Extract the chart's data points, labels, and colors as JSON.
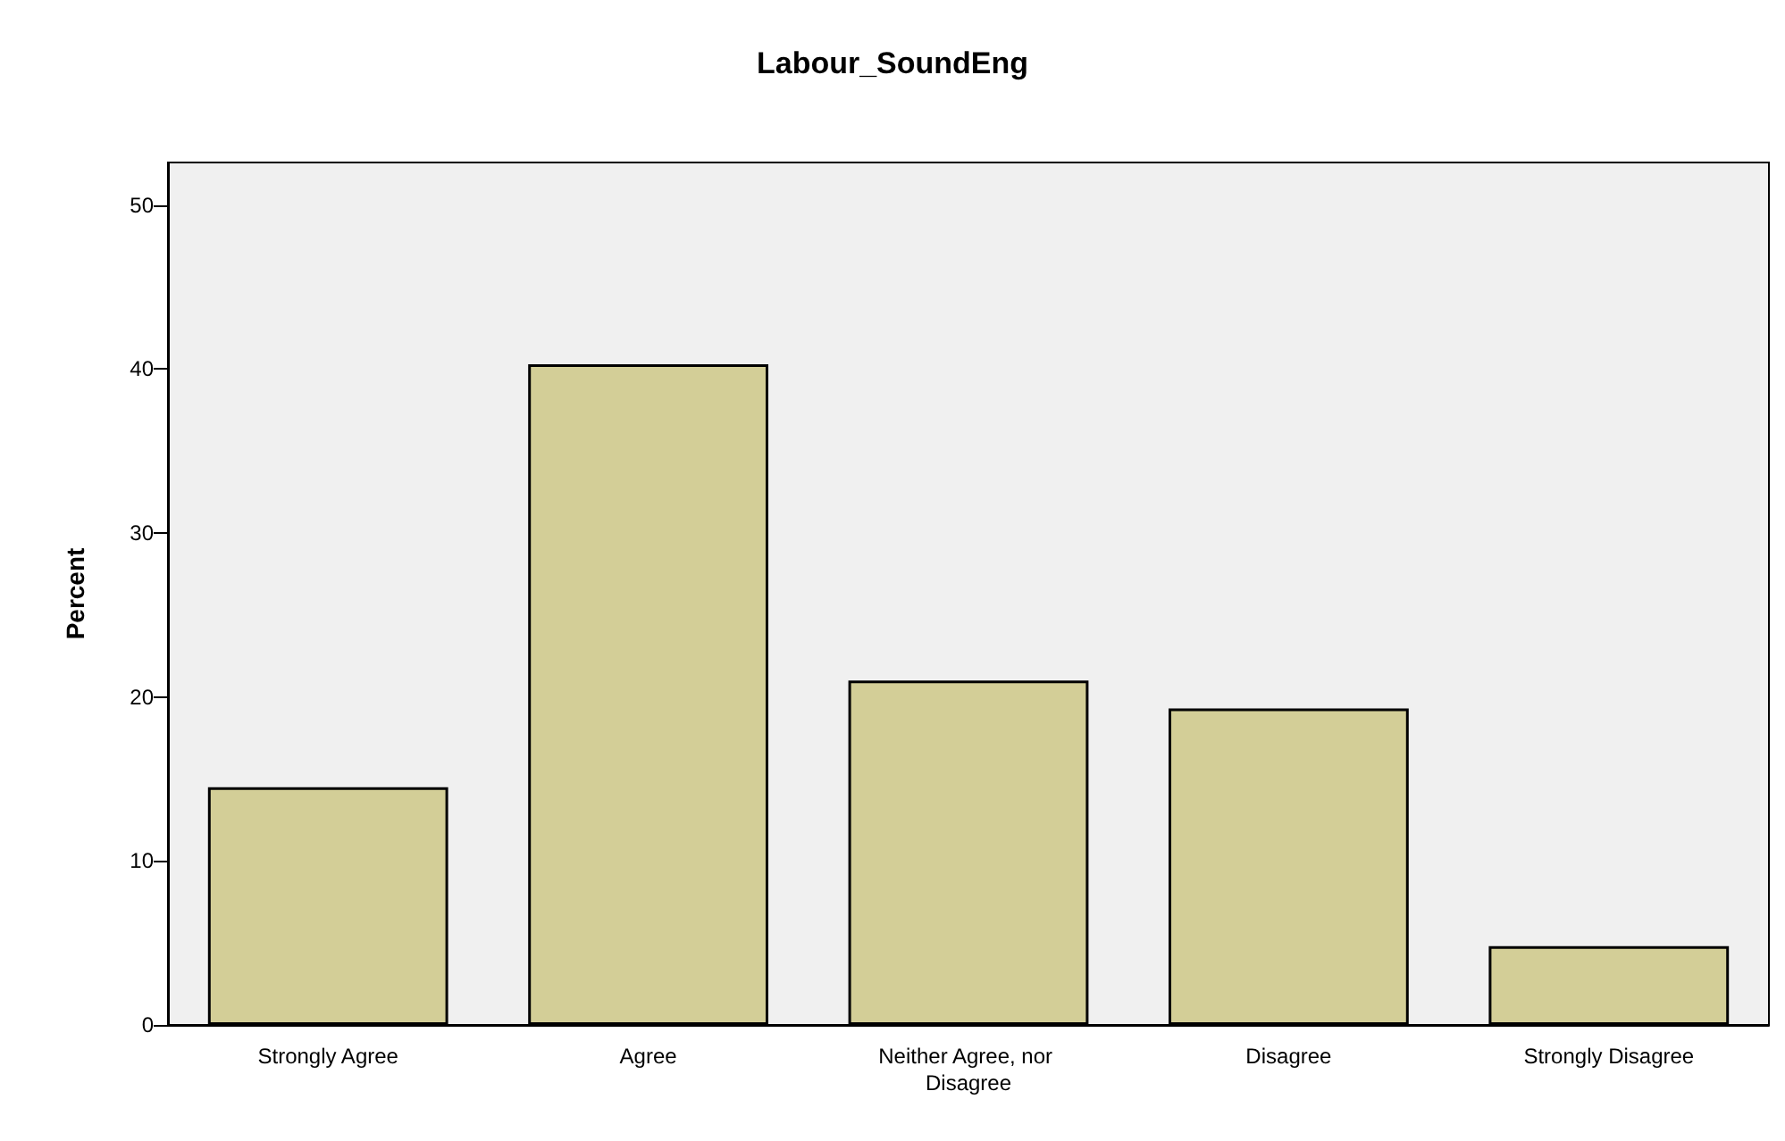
{
  "chart_data": {
    "type": "bar",
    "title": "Labour_SoundEng",
    "ylabel": "Percent",
    "categories": [
      "Strongly Agree",
      "Agree",
      "Neither Agree, nor Disagree",
      "Disagree",
      "Strongly Disagree"
    ],
    "values": [
      14.5,
      40.3,
      21.0,
      19.3,
      4.8
    ],
    "color": "#d3ce97",
    "ylim": [
      0,
      52.6
    ],
    "yticks": [
      0,
      10,
      20,
      30,
      40,
      50
    ],
    "grid": false
  }
}
